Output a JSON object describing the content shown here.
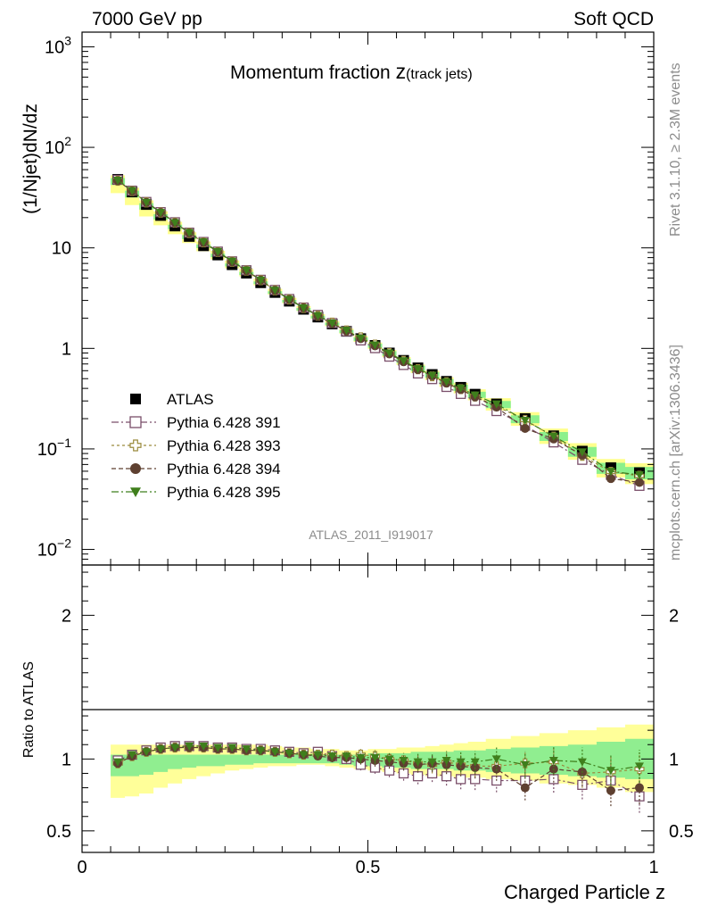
{
  "header": {
    "left": "7000 GeV pp",
    "right": "Soft QCD"
  },
  "side": {
    "rivet": "Rivet 3.1.10, ≥ 2.3M events",
    "mcplots": "mcplots.cern.ch [arXiv:1306.3436]"
  },
  "chart_data": [
    {
      "type": "scatter",
      "title_main": "Momentum fraction ",
      "title_var": "z",
      "title_sub": "(track jets)",
      "ylabel": "(1/Njet)dN/dz",
      "yscale": "log",
      "ylim": [
        0.007,
        1400
      ],
      "xlim": [
        0,
        1
      ],
      "ytick_labels": [
        {
          "base": "10",
          "exp": "3",
          "value": 1000
        },
        {
          "base": "10",
          "exp": "2",
          "value": 100
        },
        {
          "base": "10",
          "exp": "",
          "value": 10
        },
        {
          "base": "1",
          "exp": "",
          "value": 1
        },
        {
          "base": "10",
          "exp": "−1",
          "value": 0.1
        },
        {
          "base": "10",
          "exp": "−2",
          "value": 0.01
        }
      ],
      "watermark": "ATLAS_2011_I919017",
      "x": [
        0.0625,
        0.0875,
        0.1125,
        0.1375,
        0.1625,
        0.1875,
        0.2125,
        0.2375,
        0.2625,
        0.2875,
        0.3125,
        0.3375,
        0.3625,
        0.3875,
        0.4125,
        0.4375,
        0.4625,
        0.4875,
        0.5125,
        0.5375,
        0.5625,
        0.5875,
        0.6125,
        0.6375,
        0.6625,
        0.6875,
        0.725,
        0.775,
        0.825,
        0.875,
        0.925,
        0.975
      ],
      "atlas": [
        48,
        36,
        27,
        21,
        16.5,
        13,
        10.5,
        8.5,
        6.8,
        5.6,
        4.5,
        3.6,
        2.95,
        2.45,
        2.05,
        1.75,
        1.48,
        1.25,
        1.07,
        0.9,
        0.76,
        0.64,
        0.55,
        0.47,
        0.41,
        0.35,
        0.28,
        0.2,
        0.135,
        0.095,
        0.065,
        0.058
      ],
      "band_y_rel": {
        "yellow_low": [
          0.73,
          0.74,
          0.76,
          0.8,
          0.83,
          0.86,
          0.88,
          0.9,
          0.92,
          0.93,
          0.94,
          0.95,
          0.95,
          0.96,
          0.96,
          0.95,
          0.94,
          0.93,
          0.92,
          0.91,
          0.9,
          0.89,
          0.88,
          0.88,
          0.87,
          0.87,
          0.86,
          0.85,
          0.83,
          0.82,
          0.8,
          0.77
        ],
        "yellow_high": [
          1.1,
          1.1,
          1.1,
          1.1,
          1.1,
          1.1,
          1.1,
          1.1,
          1.1,
          1.1,
          1.1,
          1.09,
          1.08,
          1.08,
          1.07,
          1.07,
          1.06,
          1.06,
          1.07,
          1.07,
          1.08,
          1.08,
          1.09,
          1.1,
          1.11,
          1.12,
          1.14,
          1.16,
          1.18,
          1.2,
          1.22,
          1.24
        ],
        "green_low": [
          0.88,
          0.88,
          0.89,
          0.91,
          0.93,
          0.94,
          0.95,
          0.95,
          0.96,
          0.96,
          0.97,
          0.97,
          0.97,
          0.97,
          0.97,
          0.97,
          0.96,
          0.95,
          0.95,
          0.94,
          0.94,
          0.93,
          0.93,
          0.93,
          0.92,
          0.92,
          0.91,
          0.9,
          0.89,
          0.88,
          0.87,
          0.86
        ],
        "green_high": [
          1.03,
          1.03,
          1.03,
          1.03,
          1.03,
          1.03,
          1.03,
          1.03,
          1.03,
          1.03,
          1.03,
          1.03,
          1.03,
          1.03,
          1.03,
          1.03,
          1.03,
          1.03,
          1.04,
          1.04,
          1.04,
          1.05,
          1.05,
          1.05,
          1.06,
          1.06,
          1.07,
          1.08,
          1.09,
          1.1,
          1.12,
          1.14
        ]
      },
      "series": [
        {
          "name": "ATLAS",
          "color": "#000000",
          "marker": "filled-square",
          "ratio": [
            1,
            1,
            1,
            1,
            1,
            1,
            1,
            1,
            1,
            1,
            1,
            1,
            1,
            1,
            1,
            1,
            1,
            1,
            1,
            1,
            1,
            1,
            1,
            1,
            1,
            1,
            1,
            1,
            1,
            1,
            1,
            1
          ]
        },
        {
          "name": "Pythia 6.428 391",
          "color": "#7a4f6a",
          "marker": "open-square",
          "dash": "8,3,2,3",
          "ratio": [
            0.99,
            1.03,
            1.06,
            1.08,
            1.09,
            1.09,
            1.09,
            1.08,
            1.08,
            1.07,
            1.07,
            1.06,
            1.05,
            1.04,
            1.05,
            1.02,
            1.0,
            0.96,
            0.94,
            0.92,
            0.9,
            0.88,
            0.9,
            0.88,
            0.86,
            0.86,
            0.85,
            0.85,
            0.86,
            0.82,
            0.85,
            0.74
          ]
        },
        {
          "name": "Pythia 6.428 393",
          "color": "#9a8a3c",
          "marker": "open-cross",
          "dash": "3,3",
          "ratio": [
            0.97,
            1.02,
            1.05,
            1.07,
            1.08,
            1.08,
            1.08,
            1.07,
            1.07,
            1.06,
            1.06,
            1.05,
            1.04,
            1.03,
            1.03,
            1.03,
            1.02,
            1.03,
            1.02,
            1.0,
            0.99,
            0.97,
            0.96,
            0.98,
            0.96,
            0.95,
            0.95,
            0.97,
            0.98,
            0.9,
            0.91,
            0.93
          ]
        },
        {
          "name": "Pythia 6.428 394",
          "color": "#5e4030",
          "marker": "filled-circle",
          "dash": "5,3",
          "ratio": [
            0.97,
            1.02,
            1.05,
            1.07,
            1.08,
            1.08,
            1.08,
            1.07,
            1.07,
            1.06,
            1.06,
            1.05,
            1.04,
            1.03,
            1.02,
            1.01,
            1.01,
            1.0,
            0.99,
            0.98,
            0.97,
            0.96,
            0.97,
            0.96,
            0.95,
            0.94,
            0.93,
            0.8,
            0.93,
            0.91,
            0.78,
            0.8
          ]
        },
        {
          "name": "Pythia 6.428 395",
          "color": "#3f7f1c",
          "marker": "filled-triangle-down",
          "dash": "8,3,2,3",
          "ratio": [
            0.98,
            1.03,
            1.05,
            1.07,
            1.08,
            1.09,
            1.09,
            1.08,
            1.08,
            1.07,
            1.06,
            1.05,
            1.04,
            1.03,
            1.03,
            1.02,
            1.02,
            1.01,
            1.01,
            1.0,
            0.99,
            0.98,
            0.98,
            0.99,
            0.98,
            0.98,
            1.0,
            0.96,
            0.99,
            0.98,
            0.92,
            0.95
          ]
        }
      ]
    },
    {
      "type": "scatter",
      "ylabel": "Ratio to ATLAS",
      "xlabel": "Charged Particle z",
      "ylim": [
        0.35,
        2.35
      ],
      "xlim": [
        0,
        1
      ],
      "yticks": [
        0.5,
        1,
        2
      ],
      "ytick_labels": [
        "0.5",
        "1",
        "2"
      ],
      "xticks": [
        0,
        0.5,
        1
      ],
      "xtick_labels": [
        "0",
        "0.5",
        "1"
      ]
    }
  ]
}
